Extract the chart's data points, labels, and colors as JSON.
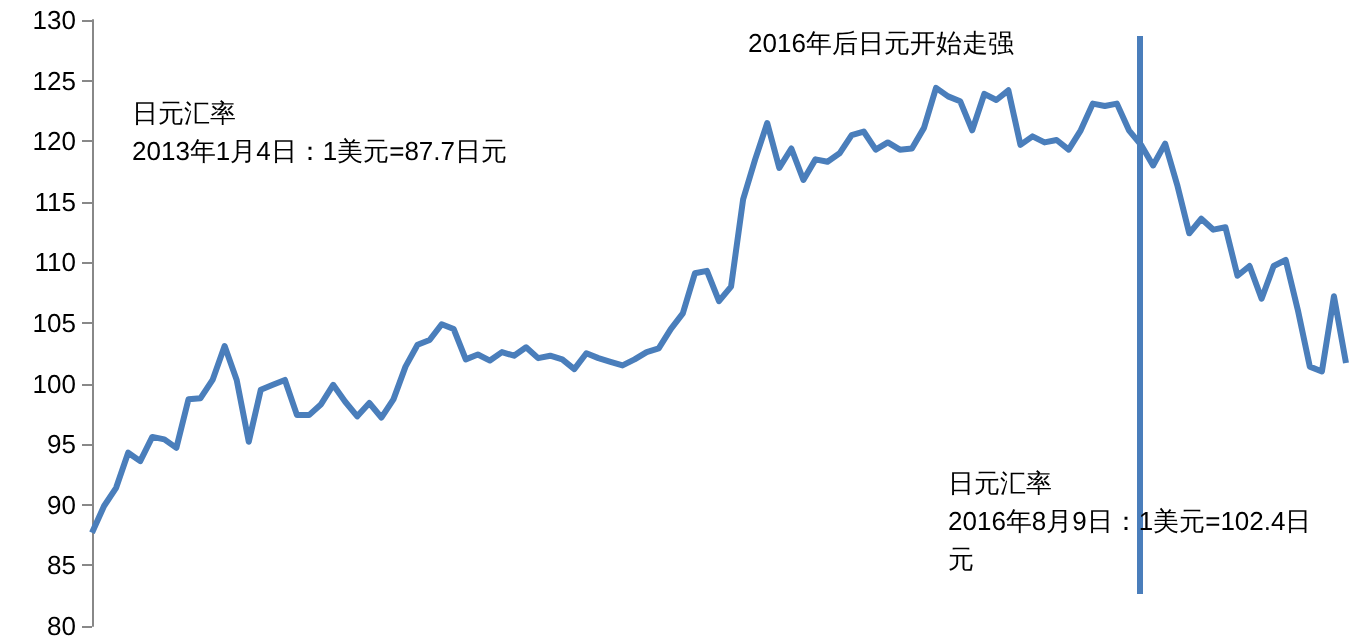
{
  "chart_data": {
    "type": "line",
    "categories": [
      null,
      null,
      null,
      null,
      null,
      null,
      null,
      null,
      null,
      null,
      null,
      null,
      null,
      null,
      null,
      null,
      null,
      null,
      null,
      null,
      null,
      null,
      null,
      null,
      null,
      null,
      null,
      null,
      null,
      null,
      null,
      null,
      null,
      null,
      null,
      null,
      null,
      null,
      null,
      null,
      null,
      null,
      null,
      null,
      null,
      null,
      null,
      null,
      null,
      null,
      null,
      null,
      null,
      null,
      null,
      null,
      null,
      null,
      null,
      null,
      null,
      null,
      null,
      null,
      null,
      null,
      null,
      null,
      null,
      null,
      null,
      null,
      null,
      null,
      null,
      null,
      null,
      null,
      null,
      null,
      null,
      null,
      null,
      null,
      null,
      null,
      null,
      null,
      null,
      null,
      null,
      null,
      null,
      null,
      null,
      null,
      null,
      null,
      null,
      null,
      null,
      null,
      null,
      null,
      null
    ],
    "series": [
      {
        "color": "#4a7ebb",
        "values": [
          87.7,
          89.9,
          91.4,
          94.3,
          93.6,
          95.6,
          95.4,
          94.7,
          98.7,
          98.8,
          100.3,
          103.1,
          100.3,
          95.2,
          99.5,
          99.9,
          100.3,
          97.4,
          97.4,
          98.3,
          99.9,
          98.5,
          97.3,
          98.4,
          97.2,
          98.7,
          101.4,
          103.2,
          103.6,
          104.9,
          104.5,
          102,
          102.4,
          101.9,
          102.6,
          102.3,
          103,
          102.1,
          102.3,
          102,
          101.2,
          102.5,
          102.1,
          101.8,
          101.5,
          102,
          102.6,
          102.9,
          104.5,
          105.8,
          109.1,
          109.3,
          106.8,
          108,
          115.2,
          118.5,
          121.5,
          117.8,
          119.4,
          116.8,
          118.5,
          118.3,
          119,
          120.5,
          120.8,
          119.3,
          119.9,
          119.3,
          119.4,
          121.1,
          124.4,
          123.7,
          123.3,
          120.9,
          123.9,
          123.4,
          124.2,
          119.7,
          120.4,
          119.9,
          120.1,
          119.3,
          120.9,
          123.1,
          122.9,
          123.1,
          120.9,
          119.7,
          118,
          119.8,
          116.4,
          112.4,
          113.6,
          112.7,
          112.9,
          108.9,
          109.7,
          107,
          109.7,
          110.2,
          106.1,
          101.4,
          101,
          107.2,
          101.7
        ]
      }
    ],
    "ylim": [
      80,
      130
    ],
    "yticks": [
      80,
      85,
      90,
      95,
      100,
      105,
      110,
      115,
      120,
      125,
      130
    ],
    "tick_labels": "y",
    "grid": false,
    "line_style": "solid",
    "annotations": [
      "2016年后日元开始走强",
      "日元汇率\n2013年1月4日：1美元=87.7日元",
      "日元汇率\n2016年8月9日：1美元=102.4日元"
    ]
  }
}
